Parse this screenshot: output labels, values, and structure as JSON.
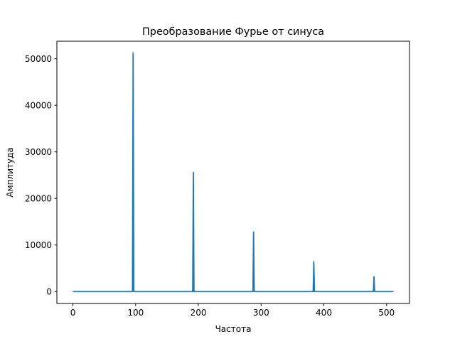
{
  "chart_data": {
    "type": "line",
    "title": "Преобразование Фурье от синуса",
    "xlabel": "Частота",
    "ylabel": "Амплитуда",
    "xlim": [
      -25.55,
      536.55
    ],
    "ylim": [
      -2560,
      53760
    ],
    "xticks": [
      0,
      100,
      200,
      300,
      400,
      500
    ],
    "yticks": [
      0,
      10000,
      20000,
      30000,
      40000,
      50000
    ],
    "xtick_labels": [
      "0",
      "100",
      "200",
      "300",
      "400",
      "500"
    ],
    "ytick_labels": [
      "0",
      "10000",
      "20000",
      "30000",
      "40000",
      "50000"
    ],
    "grid": false,
    "color": "#1f77b4",
    "series": [
      {
        "x": [
          0,
          95,
          96,
          97,
          191,
          192,
          193,
          287,
          288,
          289,
          383,
          384,
          385,
          479,
          480,
          481,
          511
        ],
        "y": [
          0,
          0,
          51200,
          0,
          0,
          25600,
          0,
          0,
          12800,
          0,
          0,
          6400,
          0,
          0,
          3200,
          0,
          0
        ]
      }
    ]
  }
}
